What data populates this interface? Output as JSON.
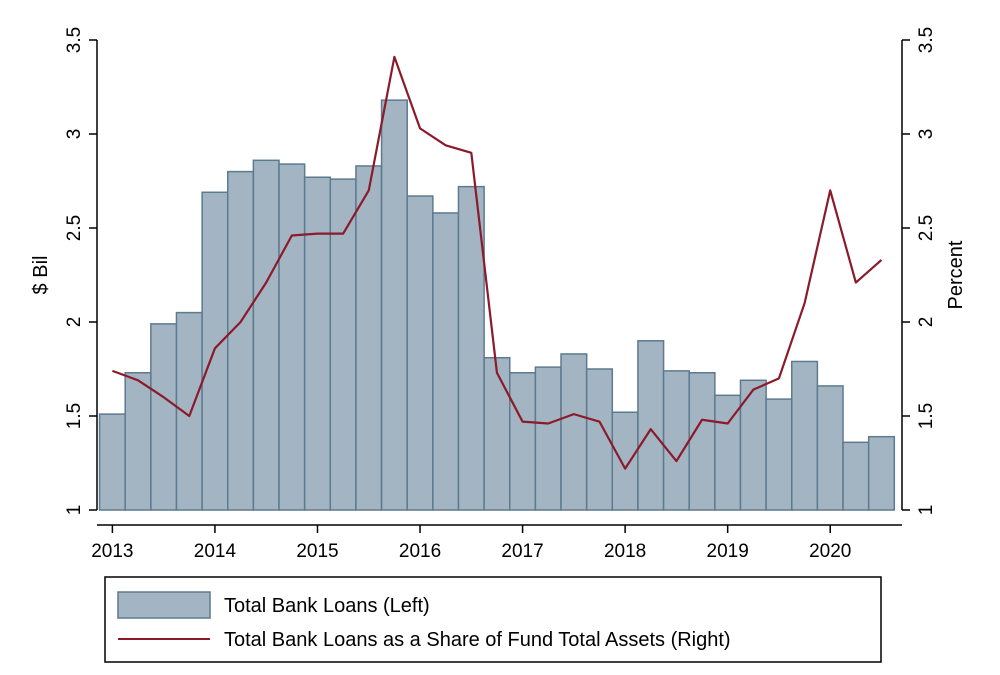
{
  "chart_data": {
    "type": "bar",
    "x_axis": {
      "ticks": [
        2013,
        2014,
        2015,
        2016,
        2017,
        2018,
        2019,
        2020
      ],
      "tick_labels": [
        "2013",
        "2014",
        "2015",
        "2016",
        "2017",
        "2018",
        "2019",
        "2020"
      ],
      "range": [
        2012.85,
        2020.7
      ]
    },
    "y_left": {
      "label": "$ Bil",
      "ticks": [
        1,
        1.5,
        2,
        2.5,
        3,
        3.5
      ],
      "tick_labels": [
        "1",
        "1.5",
        "2",
        "2.5",
        "3",
        "3.5"
      ],
      "range": [
        1,
        3.5
      ]
    },
    "y_right": {
      "label": "Percent",
      "ticks": [
        1,
        1.5,
        2,
        2.5,
        3,
        3.5
      ],
      "tick_labels": [
        "1",
        "1.5",
        "2",
        "2.5",
        "3",
        "3.5"
      ],
      "range": [
        1,
        3.5
      ]
    },
    "grid": false,
    "legend_placement": "bottom",
    "x": [
      2013.0,
      2013.25,
      2013.5,
      2013.75,
      2014.0,
      2014.25,
      2014.5,
      2014.75,
      2015.0,
      2015.25,
      2015.5,
      2015.75,
      2016.0,
      2016.25,
      2016.5,
      2016.75,
      2017.0,
      2017.25,
      2017.5,
      2017.75,
      2018.0,
      2018.25,
      2018.5,
      2018.75,
      2019.0,
      2019.25,
      2019.5,
      2019.75,
      2020.0,
      2020.25,
      2020.5
    ],
    "series": [
      {
        "name": "Total Bank Loans (Left)",
        "kind": "bar",
        "axis": "left",
        "color": "#a3b5c2",
        "edge_color": "#5d7a8f",
        "values": [
          1.51,
          1.73,
          1.99,
          2.05,
          2.69,
          2.8,
          2.86,
          2.84,
          2.77,
          2.76,
          2.83,
          3.18,
          2.67,
          2.58,
          2.72,
          1.81,
          1.73,
          1.76,
          1.83,
          1.75,
          1.52,
          1.9,
          1.74,
          1.73,
          1.61,
          1.69,
          1.59,
          1.79,
          1.66,
          1.36,
          1.39
        ]
      },
      {
        "name": "Total Bank Loans as a Share of Fund Total Assets (Right)",
        "kind": "line",
        "axis": "right",
        "color": "#8b1a2b",
        "values": [
          1.74,
          1.69,
          1.6,
          1.5,
          1.86,
          2.0,
          2.21,
          2.46,
          2.47,
          2.47,
          2.7,
          3.41,
          3.03,
          2.94,
          2.9,
          1.73,
          1.47,
          1.46,
          1.51,
          1.47,
          1.22,
          1.43,
          1.26,
          1.48,
          1.46,
          1.64,
          1.7,
          2.1,
          2.7,
          2.21,
          2.33
        ]
      }
    ]
  }
}
